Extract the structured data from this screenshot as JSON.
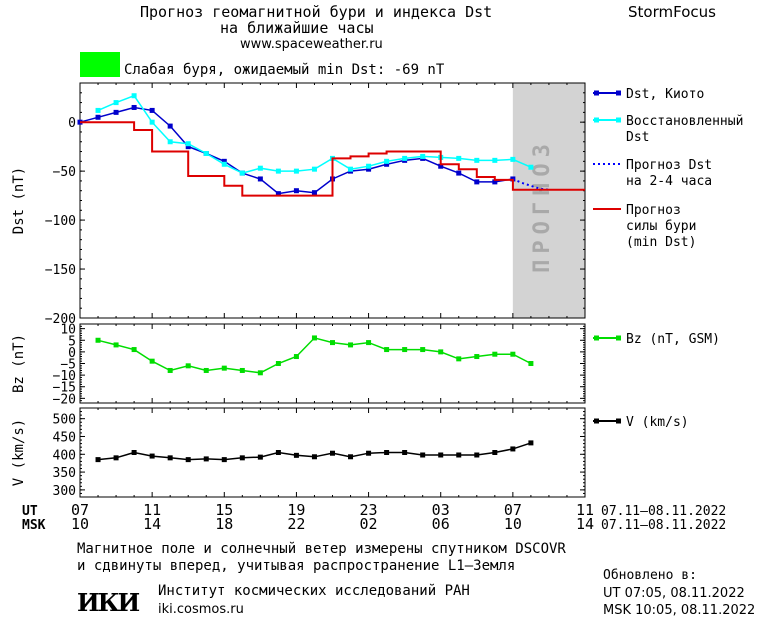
{
  "header": {
    "title_line1": "Прогноз геомагнитной бури и индекса Dst",
    "title_line2": "на ближайшие часы",
    "url": "www.spaceweather.ru",
    "brand": "StormFocus"
  },
  "storm_status": {
    "color": "#00ff00",
    "text": "Слабая буря, ожидаемый min Dst: -69 nT"
  },
  "colors": {
    "dst": "#0000cc",
    "restored": "#00ffff",
    "forecast_dst": "#0000ff",
    "storm_forecast": "#dd0000",
    "bz": "#00dd00",
    "v": "#000000",
    "forecast_band": "#d3d3d3",
    "forecast_band_text": "#a9a9a9"
  },
  "chart_data": [
    {
      "type": "line",
      "panel": "dst",
      "ylabel": "Dst (nT)",
      "ylim": [
        -200,
        40
      ],
      "yticks": [
        0,
        -50,
        -100,
        -150,
        -200
      ],
      "ytick_labels": [
        "0",
        "−50",
        "−100",
        "−150",
        "−200"
      ],
      "xlim": [
        0,
        28
      ],
      "forecast_band": {
        "x_start": 24,
        "x_end": 28,
        "label": "ПРОГНОЗ"
      },
      "series": [
        {
          "name": "Dst, Киото",
          "color_key": "dst",
          "marker": "square",
          "x": [
            0,
            1,
            2,
            3,
            4,
            5,
            6,
            7,
            8,
            9,
            10,
            11,
            12,
            13,
            14,
            15,
            16,
            17,
            18,
            19,
            20,
            21,
            22,
            23,
            24
          ],
          "values": [
            0,
            5,
            10,
            15,
            12,
            -4,
            -25,
            -32,
            -40,
            -52,
            -58,
            -73,
            -70,
            -72,
            -58,
            -50,
            -48,
            -43,
            -39,
            -37,
            -45,
            -52,
            -61,
            -61,
            -58
          ]
        },
        {
          "name": "Восстановленный Dst",
          "color_key": "restored",
          "marker": "square",
          "x": [
            1,
            2,
            3,
            4,
            5,
            6,
            7,
            8,
            9,
            10,
            11,
            12,
            13,
            14,
            15,
            16,
            17,
            18,
            19,
            20,
            21,
            22,
            23,
            24,
            25
          ],
          "values": [
            12,
            20,
            27,
            0,
            -20,
            -22,
            -32,
            -43,
            -52,
            -47,
            -50,
            -50,
            -48,
            -37,
            -48,
            -45,
            -40,
            -37,
            -35,
            -36,
            -37,
            -39,
            -39,
            -38,
            -46
          ]
        },
        {
          "name": "Прогноз Dst на 2-4 часа",
          "color_key": "forecast_dst",
          "style": "dotted",
          "x": [
            24,
            24.5,
            25,
            25.5,
            26
          ],
          "values": [
            -58,
            -62,
            -65,
            -68,
            -69
          ]
        },
        {
          "name": "Прогноз силы бури (min Dst)",
          "color_key": "storm_forecast",
          "style": "step",
          "x": [
            0,
            2,
            3,
            4,
            5,
            6,
            7,
            8,
            9,
            10,
            11,
            12,
            13,
            14,
            15,
            16,
            17,
            18,
            19,
            20,
            21,
            22,
            23,
            24,
            25,
            26,
            27,
            28
          ],
          "values": [
            0,
            0,
            -8,
            -30,
            -30,
            -55,
            -55,
            -65,
            -75,
            -75,
            -75,
            -75,
            -75,
            -37,
            -35,
            -32,
            -30,
            -30,
            -30,
            -43,
            -48,
            -56,
            -59,
            -69,
            -69,
            -69,
            -69,
            -69
          ]
        }
      ]
    },
    {
      "type": "line",
      "panel": "bz",
      "ylabel": "Bz (nT)",
      "ylim": [
        -22,
        12
      ],
      "yticks": [
        10,
        5,
        0,
        -5,
        -10,
        -15,
        -20
      ],
      "ytick_labels": [
        "10",
        "5",
        "0",
        "−5",
        "−10",
        "−15",
        "−20"
      ],
      "xlim": [
        0,
        28
      ],
      "series": [
        {
          "name": "Bz (nT, GSM)",
          "color_key": "bz",
          "marker": "square",
          "x": [
            1,
            2,
            3,
            4,
            5,
            6,
            7,
            8,
            9,
            10,
            11,
            12,
            13,
            14,
            15,
            16,
            17,
            18,
            19,
            20,
            21,
            22,
            23,
            24,
            25
          ],
          "values": [
            5,
            3,
            1,
            -4,
            -8,
            -6,
            -8,
            -7,
            -8,
            -9,
            -5,
            -2,
            6,
            4,
            3,
            4,
            1,
            1,
            1,
            0,
            -3,
            -2,
            -1,
            -1,
            -5
          ]
        }
      ]
    },
    {
      "type": "line",
      "panel": "v",
      "ylabel": "V (km/s)",
      "ylim": [
        280,
        530
      ],
      "yticks": [
        500,
        450,
        400,
        350,
        300
      ],
      "ytick_labels": [
        "500",
        "450",
        "400",
        "350",
        "300"
      ],
      "xlim": [
        0,
        28
      ],
      "series": [
        {
          "name": "V (km/s)",
          "color_key": "v",
          "marker": "square",
          "x": [
            1,
            2,
            3,
            4,
            5,
            6,
            7,
            8,
            9,
            10,
            11,
            12,
            13,
            14,
            15,
            16,
            17,
            18,
            19,
            20,
            21,
            22,
            23,
            24,
            25
          ],
          "values": [
            385,
            390,
            405,
            395,
            390,
            385,
            387,
            385,
            390,
            392,
            405,
            397,
            393,
            403,
            393,
            403,
            405,
            405,
            398,
            398,
            398,
            398,
            405,
            415,
            432
          ]
        }
      ]
    }
  ],
  "x_axis": {
    "ut_label": "UT",
    "msk_label": "MSK",
    "ut_ticks": [
      "07",
      "11",
      "15",
      "19",
      "23",
      "03",
      "07",
      "11"
    ],
    "msk_ticks": [
      "10",
      "14",
      "18",
      "22",
      "02",
      "06",
      "10",
      "14"
    ],
    "ut_range": "07.11–08.11.2022",
    "msk_range": "07.11–08.11.2022"
  },
  "footer": {
    "line1": "Магнитное поле и солнечный ветер измерены спутником DSCOVR",
    "line2": "и сдвинуты вперед, учитывая распространение L1–Земля",
    "logo_text": "ИКИ",
    "institute": "Институт космических исследований РАН",
    "institute_url": "iki.cosmos.ru",
    "updated_label": "Обновлено в:",
    "updated_ut": "UT  07:05, 08.11.2022",
    "updated_msk": "MSK 10:05, 08.11.2022"
  }
}
